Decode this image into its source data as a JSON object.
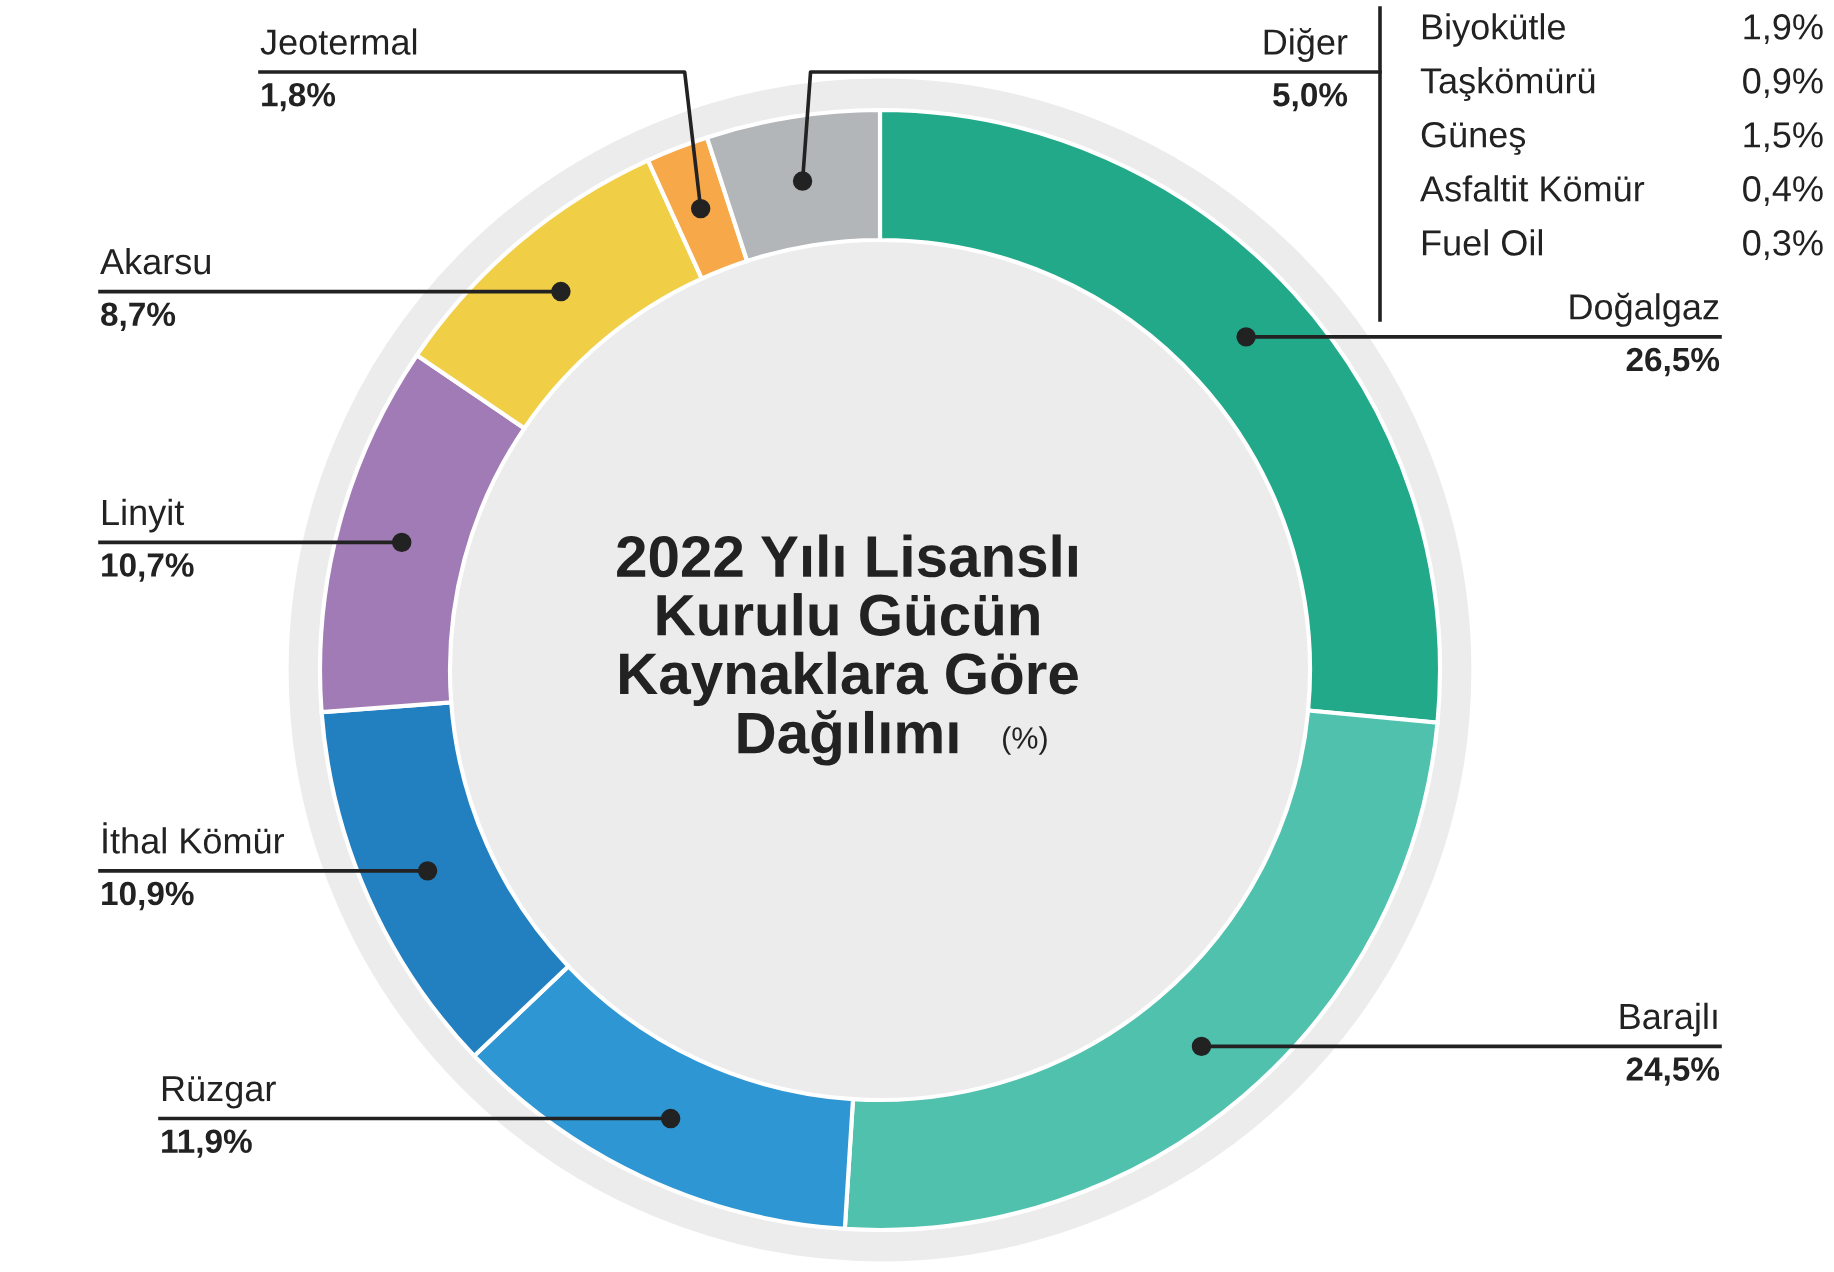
{
  "chart_data": {
    "type": "donut",
    "title": "2022 Yılı Lisanslı\nKurulu Gücün\nKaynaklara Göre\nDağılımı",
    "subtitle": "(%)",
    "categories": [
      "Doğalgaz",
      "Barajlı",
      "Rüzgar",
      "İthal Kömür",
      "Linyit",
      "Akarsu",
      "Jeotermal",
      "Diğer"
    ],
    "values": [
      26.5,
      24.5,
      11.9,
      10.9,
      10.7,
      8.7,
      1.8,
      5.0
    ],
    "value_labels": [
      "26,5%",
      "24,5%",
      "11,9%",
      "10,9%",
      "10,7%",
      "8,7%",
      "1,8%",
      "5,0%"
    ],
    "colors": [
      "#22a98a",
      "#4fc1ad",
      "#2e96d3",
      "#2380c0",
      "#a17bb5",
      "#f0cf47",
      "#f7a94a",
      "#b2b6b8"
    ],
    "annotations": [
      "Biyokütle 1,9%",
      "Taşkömürü 0,9%",
      "Güneş 1,5%",
      "Asfaltit Kömür 0,4%",
      "Fuel Oil 0,3%"
    ]
  }
}
